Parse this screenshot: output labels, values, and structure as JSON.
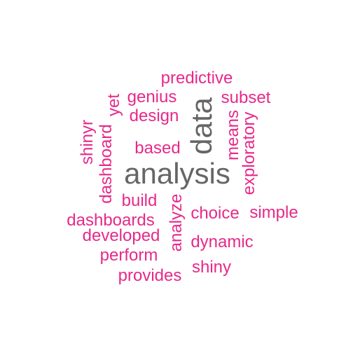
{
  "colors": {
    "primary": "#666666",
    "secondary": "#e7298a"
  },
  "words": {
    "analysis": "analysis",
    "data": "data",
    "predictive": "predictive",
    "genius": "genius",
    "yet": "yet",
    "subset": "subset",
    "design": "design",
    "shinyr": "shinyr",
    "dashboard": "dashboard",
    "means": "means",
    "based": "based",
    "exploratory": "exploratory",
    "build": "build",
    "analyze": "analyze",
    "choice": "choice",
    "simple": "simple",
    "dashboards": "dashboards",
    "developed": "developed",
    "dynamic": "dynamic",
    "perform": "perform",
    "shiny": "shiny",
    "provides": "provides"
  }
}
